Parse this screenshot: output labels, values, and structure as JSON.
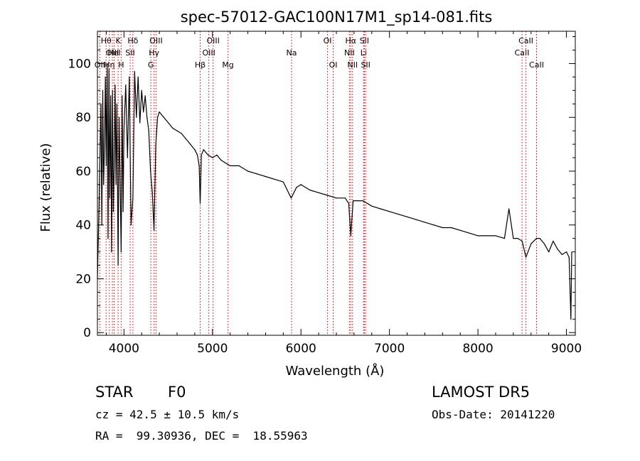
{
  "chart_data": {
    "type": "line",
    "title": "spec-57012-GAC100N17M1_sp14-081.fits",
    "xlabel": "Wavelength (Å)",
    "ylabel": "Flux (relative)",
    "xlim": [
      3700,
      9100
    ],
    "ylim": [
      -1,
      112
    ],
    "x_ticks": [
      4000,
      5000,
      6000,
      7000,
      8000,
      9000
    ],
    "y_ticks": [
      0,
      20,
      40,
      60,
      80,
      100
    ],
    "grid": false,
    "series": [
      {
        "x": [
          3700,
          3720,
          3740,
          3750,
          3760,
          3770,
          3780,
          3790,
          3800,
          3810,
          3820,
          3830,
          3840,
          3850,
          3860,
          3870,
          3880,
          3889,
          3900,
          3910,
          3920,
          3934,
          3945,
          3955,
          3968,
          3980,
          3990,
          4000,
          4020,
          4040,
          4060,
          4080,
          4101,
          4120,
          4140,
          4160,
          4180,
          4200,
          4220,
          4240,
          4260,
          4280,
          4300,
          4320,
          4340,
          4360,
          4380,
          4400,
          4450,
          4500,
          4550,
          4600,
          4650,
          4700,
          4750,
          4800,
          4830,
          4850,
          4861,
          4875,
          4900,
          4950,
          5000,
          5050,
          5100,
          5150,
          5200,
          5300,
          5400,
          5500,
          5600,
          5700,
          5800,
          5890,
          5950,
          6000,
          6100,
          6200,
          6300,
          6400,
          6500,
          6540,
          6563,
          6590,
          6650,
          6700,
          6800,
          6900,
          7000,
          7100,
          7200,
          7300,
          7400,
          7500,
          7600,
          7700,
          7800,
          7900,
          8000,
          8100,
          8200,
          8300,
          8350,
          8400,
          8450,
          8500,
          8542,
          8600,
          8662,
          8700,
          8750,
          8800,
          8850,
          8900,
          8950,
          9000,
          9030,
          9050,
          9060
        ],
        "y": [
          20,
          50,
          85,
          40,
          90,
          55,
          70,
          95,
          62,
          100,
          35,
          98,
          50,
          88,
          30,
          90,
          45,
          60,
          92,
          55,
          85,
          25,
          80,
          60,
          30,
          88,
          45,
          75,
          92,
          65,
          95,
          40,
          50,
          97,
          80,
          95,
          78,
          90,
          82,
          88,
          80,
          75,
          60,
          52,
          38,
          70,
          80,
          82,
          80,
          78,
          76,
          75,
          74,
          72,
          70,
          68,
          66,
          62,
          48,
          66,
          68,
          66,
          65,
          66,
          64,
          63,
          62,
          62,
          60,
          59,
          58,
          57,
          56,
          50,
          54,
          55,
          53,
          52,
          51,
          50,
          50,
          48,
          36,
          49,
          49,
          49,
          47,
          46,
          45,
          44,
          43,
          42,
          41,
          40,
          39,
          39,
          38,
          37,
          36,
          36,
          36,
          35,
          46,
          35,
          35,
          34,
          28,
          33,
          35,
          35,
          33,
          30,
          34,
          31,
          29,
          30,
          28,
          5,
          30
        ]
      }
    ],
    "line_markers": [
      {
        "label": "OII",
        "wl": 3727,
        "row": 3
      },
      {
        "label": "Hθ",
        "wl": 3798,
        "row": 1
      },
      {
        "label": "Hη",
        "wl": 3835,
        "row": 3
      },
      {
        "label": "OIII",
        "wl": 3869,
        "row": 2
      },
      {
        "label": "HeI",
        "wl": 3889,
        "row": 2
      },
      {
        "label": "K",
        "wl": 3934,
        "row": 1
      },
      {
        "label": "H",
        "wl": 3968,
        "row": 3
      },
      {
        "label": "SII",
        "wl": 4070,
        "row": 2
      },
      {
        "label": "Hδ",
        "wl": 4101,
        "row": 1
      },
      {
        "label": "G",
        "wl": 4304,
        "row": 3
      },
      {
        "label": "Hγ",
        "wl": 4340,
        "row": 2
      },
      {
        "label": "OIII",
        "wl": 4363,
        "row": 1
      },
      {
        "label": "Hβ",
        "wl": 4861,
        "row": 3
      },
      {
        "label": "OIII",
        "wl": 4959,
        "row": 2
      },
      {
        "label": "OIII",
        "wl": 5007,
        "row": 1
      },
      {
        "label": "Mg",
        "wl": 5175,
        "row": 3
      },
      {
        "label": "Na",
        "wl": 5894,
        "row": 2
      },
      {
        "label": "OI",
        "wl": 6300,
        "row": 1
      },
      {
        "label": "OI",
        "wl": 6364,
        "row": 3
      },
      {
        "label": "NII",
        "wl": 6548,
        "row": 2
      },
      {
        "label": "Hα",
        "wl": 6563,
        "row": 1
      },
      {
        "label": "NII",
        "wl": 6583,
        "row": 3
      },
      {
        "label": "Li",
        "wl": 6708,
        "row": 2
      },
      {
        "label": "SII",
        "wl": 6716,
        "row": 1
      },
      {
        "label": "SII",
        "wl": 6731,
        "row": 3
      },
      {
        "label": "CaII",
        "wl": 8498,
        "row": 2
      },
      {
        "label": "CaII",
        "wl": 8542,
        "row": 1
      },
      {
        "label": "CaII",
        "wl": 8662,
        "row": 3
      }
    ]
  },
  "info": {
    "class": "STAR",
    "subclass": "F0",
    "survey": "LAMOST DR5",
    "redshift": "cz = 42.5 ± 10.5 km/s",
    "obs_date": "Obs-Date: 20141220",
    "coords": "RA =  99.30936, DEC =  18.55963"
  },
  "colors": {
    "axes": "#000000",
    "spectrum": "#000000",
    "marker": "#cc0000"
  }
}
